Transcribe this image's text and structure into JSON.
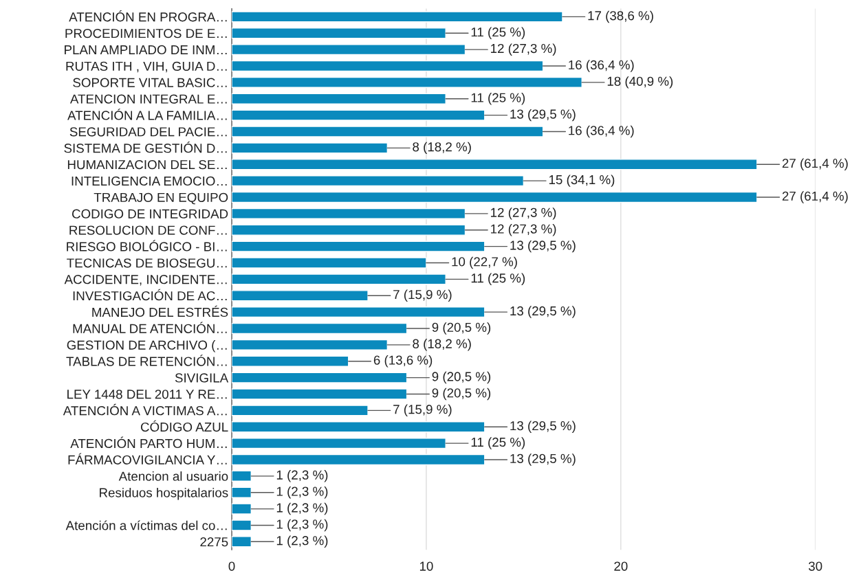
{
  "chart_data": {
    "type": "bar",
    "orientation": "horizontal",
    "categories": [
      "ATENCIÓN EN PROGRA…",
      "PROCEDIMIENTOS DE E…",
      "PLAN AMPLIADO DE INM…",
      "RUTAS ITH , VIH, GUIA D…",
      "SOPORTE VITAL BASIC…",
      "ATENCION INTEGRAL E…",
      "ATENCIÓN A LA FAMILIA…",
      "SEGURIDAD DEL PACIE…",
      "SISTEMA DE GESTIÓN D…",
      "HUMANIZACION DEL SE…",
      "INTELIGENCIA EMOCIO…",
      "TRABAJO EN EQUIPO",
      "CODIGO DE INTEGRIDAD",
      "RESOLUCION DE CONF…",
      "RIESGO BIOLÓGICO - BI…",
      "TECNICAS DE BIOSEGU…",
      "ACCIDENTE, INCIDENTE…",
      "INVESTIGACIÓN DE AC…",
      "MANEJO DEL ESTRÉS",
      "MANUAL DE ATENCIÓN…",
      "GESTION DE ARCHIVO (…",
      "TABLAS DE RETENCIÓN…",
      "SIVIGILA",
      "LEY 1448 DEL 2011 Y RE…",
      "ATENCIÓN A VICTIMAS A…",
      "CÓDIGO AZUL",
      "ATENCIÓN PARTO HUM…",
      "FÁRMACOVIGILANCIA Y…",
      "Atencion al usuario",
      "Residuos hospitalarios",
      null,
      "Atención a víctimas del co…",
      "2275"
    ],
    "values": [
      17,
      11,
      12,
      16,
      18,
      11,
      13,
      16,
      8,
      27,
      15,
      27,
      12,
      12,
      13,
      10,
      11,
      7,
      13,
      9,
      8,
      6,
      9,
      9,
      7,
      13,
      11,
      13,
      1,
      1,
      1,
      1,
      1
    ],
    "value_labels": [
      "17 (38,6 %)",
      "11 (25 %)",
      "12 (27,3 %)",
      "16 (36,4 %)",
      "18 (40,9 %)",
      "11 (25 %)",
      "13 (29,5 %)",
      "16 (36,4 %)",
      "8 (18,2 %)",
      "27 (61,4 %)",
      "15 (34,1 %)",
      "27 (61,4 %)",
      "12 (27,3 %)",
      "12 (27,3 %)",
      "13 (29,5 %)",
      "10 (22,7 %)",
      "11 (25 %)",
      "7 (15,9 %)",
      "13 (29,5 %)",
      "9 (20,5 %)",
      "8 (18,2 %)",
      "6 (13,6 %)",
      "9 (20,5 %)",
      "9 (20,5 %)",
      "7 (15,9 %)",
      "13 (29,5 %)",
      "11 (25 %)",
      "13 (29,5 %)",
      "1 (2,3 %)",
      "1 (2,3 %)",
      "1 (2,3 %)",
      "1 (2,3 %)",
      "1 (2,3 %)"
    ],
    "color": "#0a8abd",
    "xlim": [
      0,
      30
    ],
    "xticks": [
      0,
      10,
      20,
      30
    ],
    "grid": "x",
    "legend": false
  }
}
